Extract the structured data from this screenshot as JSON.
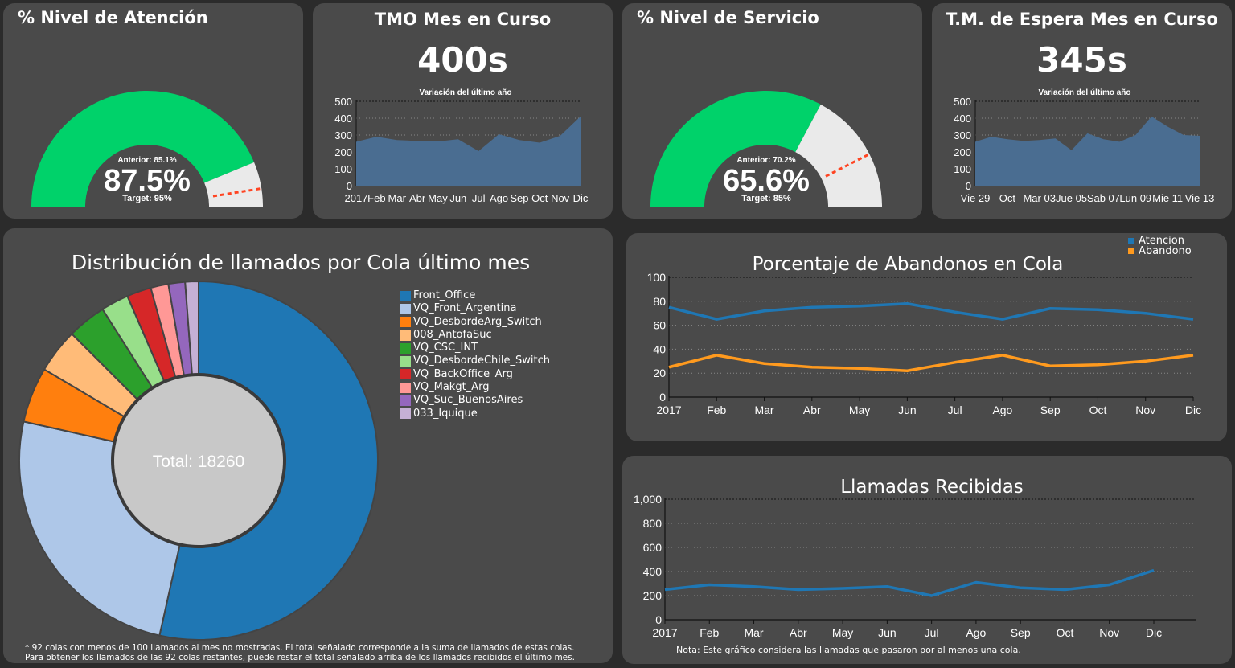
{
  "gauge1": {
    "title": "% Nivel de Atención",
    "value": 87.5,
    "value_label": "87.5%",
    "previous_label": "Anterior: 85.1%",
    "target_label": "Target: 95%",
    "target": 95,
    "fill_color": "#00d26a",
    "rest_color": "#eaeaea"
  },
  "tmo": {
    "title": "TMO Mes en Curso",
    "value_label": "400s",
    "subtitle": "Variación del último año"
  },
  "gauge2": {
    "title": "% Nivel de Servicio",
    "value": 65.6,
    "value_label": "65.6%",
    "previous_label": "Anterior: 70.2%",
    "target_label": "Target: 85%",
    "target": 85,
    "fill_color": "#00d26a",
    "rest_color": "#eaeaea"
  },
  "espera": {
    "title": "T.M. de Espera Mes en Curso",
    "value_label": "345s",
    "subtitle": "Variación del último año"
  },
  "pie": {
    "title": "Distribución de llamados por Cola último mes",
    "total_label": "Total: 18260",
    "footnote_1": "* 92 colas con menos de 100 llamados al mes no mostradas. El total señalado corresponde a la suma de llamados de estas colas.",
    "footnote_2": "Para obtener los llamados de las 92 colas restantes, puede restar el total señalado arriba de los llamados recibidos el último mes."
  },
  "abandonos": {
    "title": "Porcentaje de Abandonos en Cola"
  },
  "llamadas": {
    "title": "Llamadas Recibidas",
    "note": "Nota: Este gráfico considera las llamadas que pasaron por al menos una cola."
  },
  "chart_data": [
    {
      "type": "area",
      "title": "TMO Mes en Curso",
      "subtitle": "Variación del último año",
      "x": [
        "2017",
        "Feb",
        "Mar",
        "Abr",
        "May",
        "Jun",
        "Jul",
        "Ago",
        "Sep",
        "Oct",
        "Nov",
        "Dic"
      ],
      "values": [
        260,
        290,
        270,
        265,
        262,
        275,
        205,
        305,
        270,
        255,
        295,
        410
      ],
      "ylim": [
        0,
        500
      ],
      "yticks": [
        0,
        100,
        200,
        300,
        400,
        500
      ],
      "color": "#4a6d91",
      "grid": true
    },
    {
      "type": "area",
      "title": "T.M. de Espera Mes en Curso",
      "subtitle": "Variación del último año",
      "x_ticklabels": [
        "Vie 29",
        "Oct",
        "Mar 03",
        "Jue 05",
        "Sab 07",
        "Lun 09",
        "Mie 11",
        "Vie 13"
      ],
      "values": [
        260,
        290,
        275,
        265,
        270,
        280,
        210,
        310,
        275,
        260,
        300,
        410,
        350,
        300,
        295
      ],
      "ylim": [
        0,
        500
      ],
      "yticks": [
        0,
        100,
        200,
        300,
        400,
        500
      ],
      "color": "#4a6d91",
      "grid": true
    },
    {
      "type": "pie",
      "title": "Distribución de llamados por Cola último mes",
      "total_label": "Total: 18260",
      "categories": [
        "Front_Office",
        "VQ_Front_Argentina",
        "VQ_DesbordeArg_Switch",
        "008_AntofaSuc",
        "VQ_CSC_INT",
        "VQ_DesbordeChile_Switch",
        "VQ_BackOffice_Arg",
        "VQ_Makgt_Arg",
        "VQ_Suc_BuenosAires",
        "033_Iquique"
      ],
      "values": [
        53.5,
        25.0,
        5.0,
        4.0,
        3.5,
        2.5,
        2.2,
        1.6,
        1.5,
        1.2
      ],
      "colors": [
        "#1f77b4",
        "#aec7e8",
        "#ff7f0e",
        "#ffbb78",
        "#2ca02c",
        "#98df8a",
        "#d62728",
        "#ff9896",
        "#9467bd",
        "#c5b0d5"
      ],
      "legend": "right"
    },
    {
      "type": "line",
      "title": "Porcentaje de Abandonos en Cola",
      "categories": [
        "2017",
        "Feb",
        "Mar",
        "Abr",
        "May",
        "Jun",
        "Jul",
        "Ago",
        "Sep",
        "Oct",
        "Nov",
        "Dic"
      ],
      "series": [
        {
          "name": "Atencion",
          "values": [
            75,
            65,
            72,
            75,
            76,
            78,
            71,
            65,
            74,
            73,
            70,
            65
          ],
          "color": "#1f77b4"
        },
        {
          "name": "Abandono",
          "values": [
            25,
            35,
            28,
            25,
            24,
            22,
            29,
            35,
            26,
            27,
            30,
            35
          ],
          "color": "#ff9a1e"
        }
      ],
      "ylim": [
        0,
        100
      ],
      "yticks": [
        0,
        20,
        40,
        60,
        80,
        100
      ],
      "grid": true,
      "legend": "top-right"
    },
    {
      "type": "line",
      "title": "Llamadas Recibidas",
      "categories": [
        "2017",
        "Feb",
        "Mar",
        "Abr",
        "May",
        "Jun",
        "Jul",
        "Ago",
        "Sep",
        "Oct",
        "Nov",
        "Dic"
      ],
      "series": [
        {
          "values": [
            250,
            290,
            275,
            250,
            260,
            275,
            200,
            310,
            265,
            250,
            290,
            410
          ],
          "color": "#1f77b4"
        }
      ],
      "ylim": [
        0,
        1000
      ],
      "yticks": [
        0,
        200,
        400,
        600,
        800,
        1000
      ],
      "ytick_labels": [
        "0",
        "200",
        "400",
        "600",
        "800",
        "1,000"
      ],
      "grid": true
    }
  ]
}
